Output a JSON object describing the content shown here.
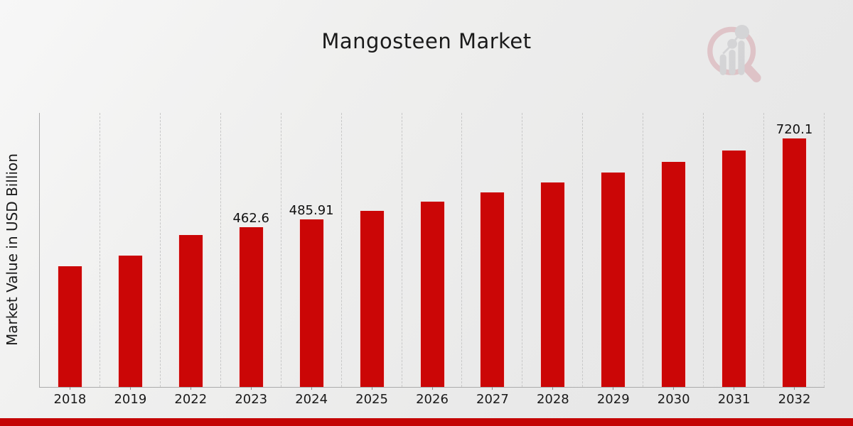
{
  "header": {
    "title": "Mangosteen Market"
  },
  "y_axis": {
    "label": "Market Value in USD Billion"
  },
  "watermark": {
    "icon": "magnifier-bar-chart-logo"
  },
  "colors": {
    "bar": "#cb0606",
    "bar_edge": "#ffffff",
    "accent_stripe": "#c40404",
    "axis": "#ababab",
    "gridline": "#c8c8c8",
    "tick": "#8a8a8a",
    "text": "#1a1a1a",
    "background": "#ececec",
    "logo_pink": "#d0909a",
    "logo_gray": "#b6b6bb"
  },
  "chart_data": {
    "type": "bar",
    "title": "Mangosteen Market",
    "xlabel": "",
    "ylabel": "Market Value in USD Billion",
    "unit": "USD Billion",
    "categories": [
      "2018",
      "2019",
      "2022",
      "2023",
      "2024",
      "2025",
      "2026",
      "2027",
      "2028",
      "2029",
      "2030",
      "2031",
      "2032"
    ],
    "values": [
      350,
      380,
      440,
      462.6,
      485.91,
      510.4,
      536.1,
      563.1,
      591.5,
      621.3,
      652.6,
      685.5,
      720.1
    ],
    "data_labels": {
      "2023": "462.6",
      "2024": "485.91",
      "2032": "720.1"
    },
    "bar_color": "#cb0606",
    "ylim": [
      0,
      794
    ],
    "grid": "vertical-dashed",
    "legend": "none"
  }
}
